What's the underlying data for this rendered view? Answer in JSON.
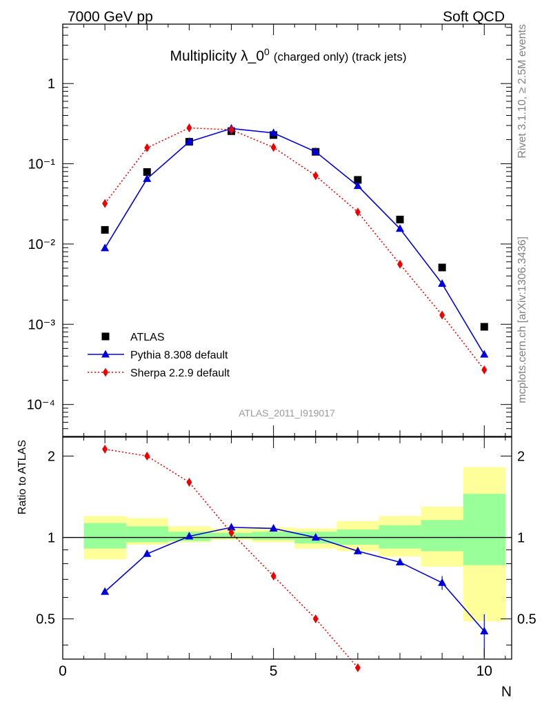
{
  "header": {
    "left": "7000 GeV pp",
    "right": "Soft QCD"
  },
  "side_labels": {
    "rivet": "Rivet 3.1.10, ≥ 2.5M events",
    "source": "mcplots.cern.ch [arXiv:1306.3436]"
  },
  "chart_data": [
    {
      "type": "scatter",
      "title": {
        "main": "Multiplicity λ_0",
        "superscript": "0",
        "suffix": "(charged only) (track jets)"
      },
      "watermark": "ATLAS_2011_I919017",
      "x_axis": {
        "min": 0,
        "max": 10.65,
        "ticks": [
          "0",
          "5",
          "10"
        ]
      },
      "y_axis": {
        "scale": "log",
        "min": 4e-05,
        "max": 5.5,
        "tick_labels": [
          {
            "value": 1,
            "label": "1"
          },
          {
            "value": 0.1,
            "label": "10⁻¹"
          },
          {
            "value": 0.01,
            "label": "10⁻²"
          },
          {
            "value": 0.001,
            "label": "10⁻³"
          },
          {
            "value": 0.0001,
            "label": "10⁻⁴"
          }
        ]
      },
      "legend_position": "lower-left",
      "x": [
        1,
        2,
        3,
        4,
        5,
        6,
        7,
        8,
        9,
        10
      ],
      "series": [
        {
          "name": "ATLAS",
          "color": "#000000",
          "marker": "square",
          "line": "none",
          "values": [
            0.015,
            0.079,
            0.188,
            0.255,
            0.228,
            0.141,
            0.063,
            0.0202,
            0.0051,
            0.00093
          ]
        },
        {
          "name": "Pythia 8.308 default",
          "color": "#0000dd",
          "marker": "triangle",
          "line": "solid",
          "values": [
            0.0089,
            0.065,
            0.188,
            0.275,
            0.242,
            0.141,
            0.053,
            0.0155,
            0.0032,
            0.00042
          ]
        },
        {
          "name": "Sherpa 2.2.9 default",
          "color": "#ee0000",
          "marker": "diamond",
          "line": "dotted",
          "values": [
            0.032,
            0.158,
            0.28,
            0.265,
            0.16,
            0.071,
            0.025,
            0.0056,
            0.0013,
            0.00027
          ]
        }
      ]
    },
    {
      "type": "scatter",
      "ylabel": "Ratio to ATLAS",
      "xlabel": "N",
      "x_axis": {
        "min": 0,
        "max": 10.65,
        "ticks": [
          "0",
          "5",
          "10"
        ]
      },
      "y_axis": {
        "scale": "log",
        "min": 0.355,
        "max": 2.35,
        "tick_labels": [
          {
            "value": 0.5,
            "label": "0.5"
          },
          {
            "value": 1,
            "label": "1"
          },
          {
            "value": 2,
            "label": "2"
          }
        ]
      },
      "reference_line": 1,
      "bands": {
        "bin_edges": [
          0.5,
          1.5,
          2.5,
          3.5,
          4.5,
          5.5,
          6.5,
          7.5,
          8.5,
          9.5,
          10.5
        ],
        "outer": {
          "color": "#ffff99",
          "lo": [
            0.83,
            0.94,
            0.96,
            0.98,
            0.96,
            0.91,
            0.89,
            0.85,
            0.78,
            0.49
          ],
          "hi": [
            1.2,
            1.18,
            1.1,
            1.08,
            1.09,
            1.08,
            1.15,
            1.2,
            1.3,
            1.82
          ]
        },
        "inner": {
          "color": "#99ff99",
          "lo": [
            0.91,
            0.96,
            0.97,
            0.99,
            0.98,
            0.95,
            0.94,
            0.91,
            0.89,
            0.79
          ],
          "hi": [
            1.13,
            1.1,
            1.05,
            1.04,
            1.05,
            1.05,
            1.07,
            1.11,
            1.16,
            1.45
          ]
        }
      },
      "x": [
        1,
        2,
        3,
        4,
        5,
        6,
        7,
        8,
        9,
        10
      ],
      "series": [
        {
          "name": "Pythia 8.308 default",
          "color": "#0000dd",
          "marker": "triangle",
          "line": "solid",
          "values": [
            0.63,
            0.87,
            1.01,
            1.09,
            1.08,
            1.0,
            0.89,
            0.81,
            0.68,
            0.45
          ]
        },
        {
          "name": "Sherpa 2.2.9 default",
          "color": "#ee0000",
          "marker": "diamond",
          "line": "dotted",
          "values": [
            2.12,
            2.0,
            1.6,
            1.04,
            0.72,
            0.5,
            0.33
          ]
        }
      ]
    }
  ]
}
